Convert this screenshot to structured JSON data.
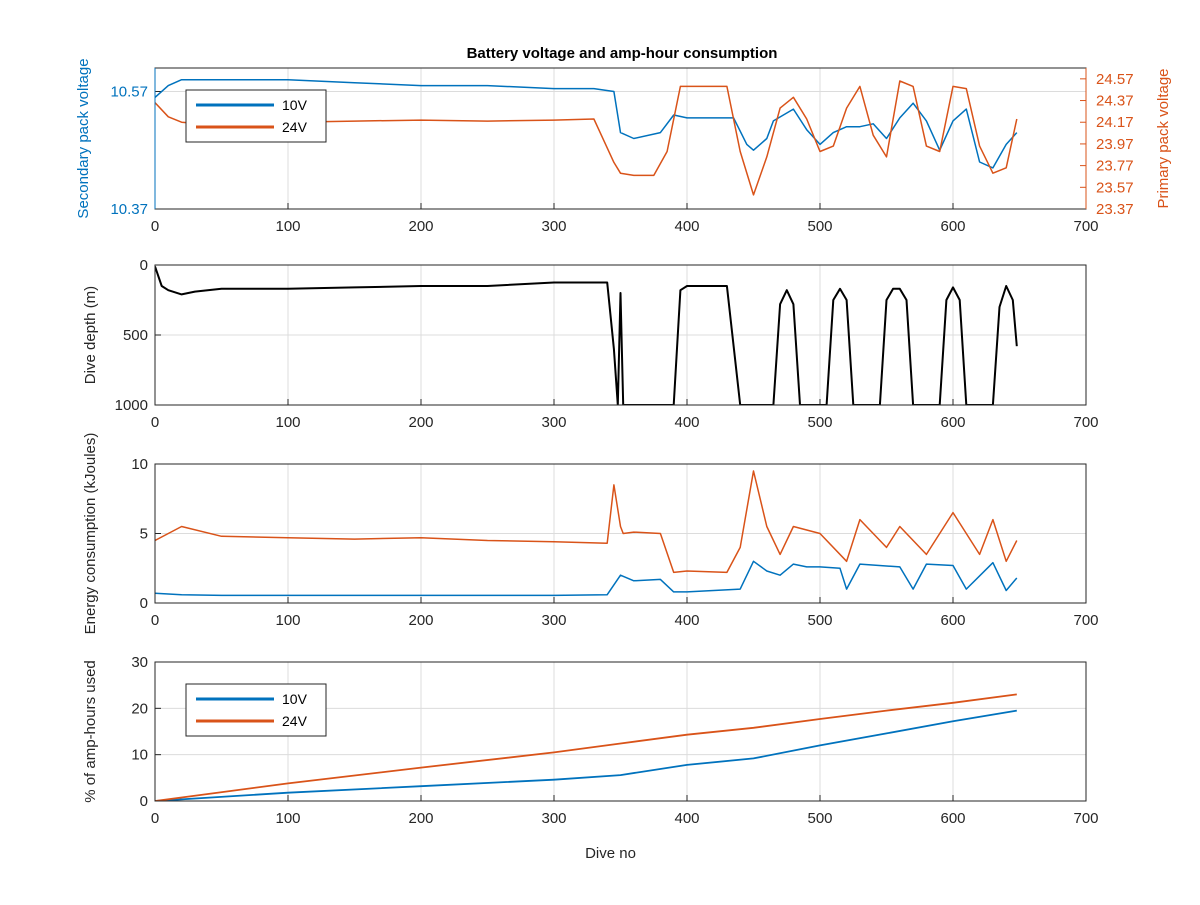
{
  "title": "Battery voltage and amp-hour consumption",
  "colors": {
    "v10": "#0072BD",
    "v24": "#D95319",
    "depth": "#000000",
    "axis": "#262626",
    "grid": "#dcdcdc"
  },
  "chart_data": [
    {
      "id": "voltage",
      "type": "line",
      "title": "Battery voltage and amp-hour consumption",
      "xlabel": "",
      "ylabel": "Secondary pack voltage",
      "ylabel_right": "Primary pack voltage",
      "xlim": [
        0,
        700
      ],
      "ylim": [
        10.37,
        10.61
      ],
      "ylim_right": [
        23.37,
        24.67
      ],
      "x_ticks": [
        "0",
        "100",
        "200",
        "300",
        "400",
        "500",
        "600",
        "700"
      ],
      "y_ticks": [
        "10.37",
        "10.57"
      ],
      "y_ticks_right": [
        "23.37",
        "23.57",
        "23.77",
        "23.97",
        "24.17",
        "24.37",
        "24.57"
      ],
      "grid": true,
      "legend": {
        "position": "top-left",
        "entries": [
          "10V",
          "24V"
        ]
      },
      "series": [
        {
          "name": "10V",
          "axis": "left",
          "x": [
            0,
            10,
            20,
            40,
            60,
            80,
            100,
            150,
            200,
            250,
            300,
            330,
            345,
            350,
            360,
            380,
            390,
            400,
            420,
            435,
            445,
            450,
            460,
            465,
            480,
            490,
            500,
            510,
            520,
            530,
            540,
            550,
            560,
            570,
            580,
            590,
            600,
            610,
            620,
            630,
            640,
            648
          ],
          "y": [
            10.56,
            10.58,
            10.59,
            10.59,
            10.59,
            10.59,
            10.59,
            10.585,
            10.58,
            10.58,
            10.575,
            10.575,
            10.57,
            10.5,
            10.49,
            10.5,
            10.53,
            10.525,
            10.525,
            10.525,
            10.48,
            10.47,
            10.49,
            10.52,
            10.54,
            10.505,
            10.48,
            10.5,
            10.51,
            10.51,
            10.515,
            10.49,
            10.525,
            10.55,
            10.52,
            10.47,
            10.52,
            10.54,
            10.45,
            10.44,
            10.48,
            10.5
          ]
        },
        {
          "name": "24V",
          "axis": "right",
          "x": [
            0,
            10,
            20,
            40,
            60,
            80,
            100,
            150,
            200,
            250,
            300,
            330,
            345,
            350,
            360,
            375,
            385,
            395,
            410,
            430,
            440,
            450,
            460,
            470,
            480,
            490,
            500,
            510,
            520,
            530,
            540,
            550,
            560,
            570,
            580,
            590,
            600,
            610,
            620,
            630,
            640,
            648
          ],
          "y": [
            24.35,
            24.22,
            24.17,
            24.15,
            24.14,
            24.15,
            24.17,
            24.18,
            24.19,
            24.18,
            24.19,
            24.2,
            23.8,
            23.7,
            23.68,
            23.68,
            23.9,
            24.5,
            24.5,
            24.5,
            23.9,
            23.5,
            23.85,
            24.3,
            24.4,
            24.2,
            23.9,
            23.95,
            24.3,
            24.5,
            24.05,
            23.85,
            24.55,
            24.5,
            23.95,
            23.9,
            24.5,
            24.48,
            23.95,
            23.7,
            23.75,
            24.2
          ]
        }
      ]
    },
    {
      "id": "depth",
      "type": "line",
      "xlabel": "",
      "ylabel": "Dive depth (m)",
      "xlim": [
        0,
        700
      ],
      "ylim": [
        0,
        1000
      ],
      "y_reversed": true,
      "x_ticks": [
        "0",
        "100",
        "200",
        "300",
        "400",
        "500",
        "600",
        "700"
      ],
      "y_ticks": [
        "0",
        "500",
        "1000"
      ],
      "grid": true,
      "series": [
        {
          "name": "",
          "x": [
            0,
            5,
            10,
            20,
            30,
            50,
            100,
            150,
            200,
            250,
            300,
            340,
            345,
            348,
            350,
            352,
            355,
            390,
            395,
            400,
            430,
            440,
            455,
            465,
            470,
            475,
            480,
            485,
            495,
            505,
            510,
            515,
            520,
            525,
            535,
            545,
            550,
            555,
            560,
            565,
            570,
            580,
            590,
            595,
            600,
            605,
            610,
            620,
            630,
            635,
            640,
            645,
            648
          ],
          "y": [
            10,
            150,
            180,
            210,
            190,
            170,
            170,
            160,
            150,
            150,
            125,
            125,
            600,
            1000,
            200,
            1000,
            1000,
            1000,
            180,
            150,
            150,
            1000,
            1000,
            1000,
            280,
            180,
            280,
            1000,
            1000,
            1000,
            250,
            170,
            250,
            1000,
            1000,
            1000,
            250,
            170,
            170,
            250,
            1000,
            1000,
            1000,
            250,
            160,
            250,
            1000,
            1000,
            1000,
            300,
            150,
            250,
            580
          ]
        }
      ]
    },
    {
      "id": "energy",
      "type": "line",
      "xlabel": "",
      "ylabel": "Energy consumption (kJoules)",
      "xlim": [
        0,
        700
      ],
      "ylim": [
        0,
        10
      ],
      "x_ticks": [
        "0",
        "100",
        "200",
        "300",
        "400",
        "500",
        "600",
        "700"
      ],
      "y_ticks": [
        "0",
        "5",
        "10"
      ],
      "grid": true,
      "series": [
        {
          "name": "10V",
          "x": [
            0,
            20,
            50,
            100,
            150,
            200,
            250,
            300,
            340,
            350,
            360,
            380,
            390,
            400,
            440,
            450,
            460,
            470,
            480,
            490,
            500,
            515,
            520,
            530,
            560,
            570,
            580,
            600,
            610,
            630,
            640,
            648
          ],
          "y": [
            0.7,
            0.6,
            0.55,
            0.55,
            0.55,
            0.55,
            0.55,
            0.55,
            0.6,
            2.0,
            1.6,
            1.7,
            0.8,
            0.8,
            1.0,
            3.0,
            2.3,
            2.0,
            2.8,
            2.6,
            2.6,
            2.5,
            1.0,
            2.8,
            2.6,
            1.0,
            2.8,
            2.7,
            1.0,
            2.9,
            0.9,
            1.8
          ]
        },
        {
          "name": "24V",
          "x": [
            0,
            10,
            20,
            50,
            100,
            150,
            200,
            250,
            300,
            340,
            345,
            350,
            352,
            360,
            380,
            390,
            400,
            430,
            440,
            450,
            460,
            470,
            480,
            500,
            520,
            530,
            550,
            560,
            580,
            600,
            620,
            630,
            640,
            648
          ],
          "y": [
            4.5,
            5.0,
            5.5,
            4.8,
            4.7,
            4.6,
            4.7,
            4.5,
            4.4,
            4.3,
            8.5,
            5.5,
            5.0,
            5.1,
            5.0,
            2.2,
            2.3,
            2.2,
            4.0,
            9.5,
            5.5,
            3.5,
            5.5,
            5.0,
            3.0,
            6.0,
            4.0,
            5.5,
            3.5,
            6.5,
            3.5,
            6.0,
            3.0,
            4.5
          ]
        }
      ]
    },
    {
      "id": "amphours",
      "type": "line",
      "xlabel": "Dive no",
      "ylabel": "% of amp-hours used",
      "xlim": [
        0,
        700
      ],
      "ylim": [
        0,
        30
      ],
      "x_ticks": [
        "0",
        "100",
        "200",
        "300",
        "400",
        "500",
        "600",
        "700"
      ],
      "y_ticks": [
        "0",
        "10",
        "20",
        "30"
      ],
      "grid": true,
      "legend": {
        "position": "top-left",
        "entries": [
          "10V",
          "24V"
        ]
      },
      "series": [
        {
          "name": "10V",
          "x": [
            0,
            100,
            200,
            300,
            350,
            400,
            450,
            500,
            550,
            600,
            648
          ],
          "y": [
            0,
            1.8,
            3.2,
            4.6,
            5.6,
            7.8,
            9.2,
            12.0,
            14.6,
            17.2,
            19.5
          ]
        },
        {
          "name": "24V",
          "x": [
            0,
            100,
            200,
            300,
            350,
            400,
            450,
            500,
            550,
            600,
            648
          ],
          "y": [
            0,
            3.8,
            7.2,
            10.5,
            12.4,
            14.3,
            15.8,
            17.7,
            19.5,
            21.2,
            23.0
          ]
        }
      ]
    }
  ]
}
